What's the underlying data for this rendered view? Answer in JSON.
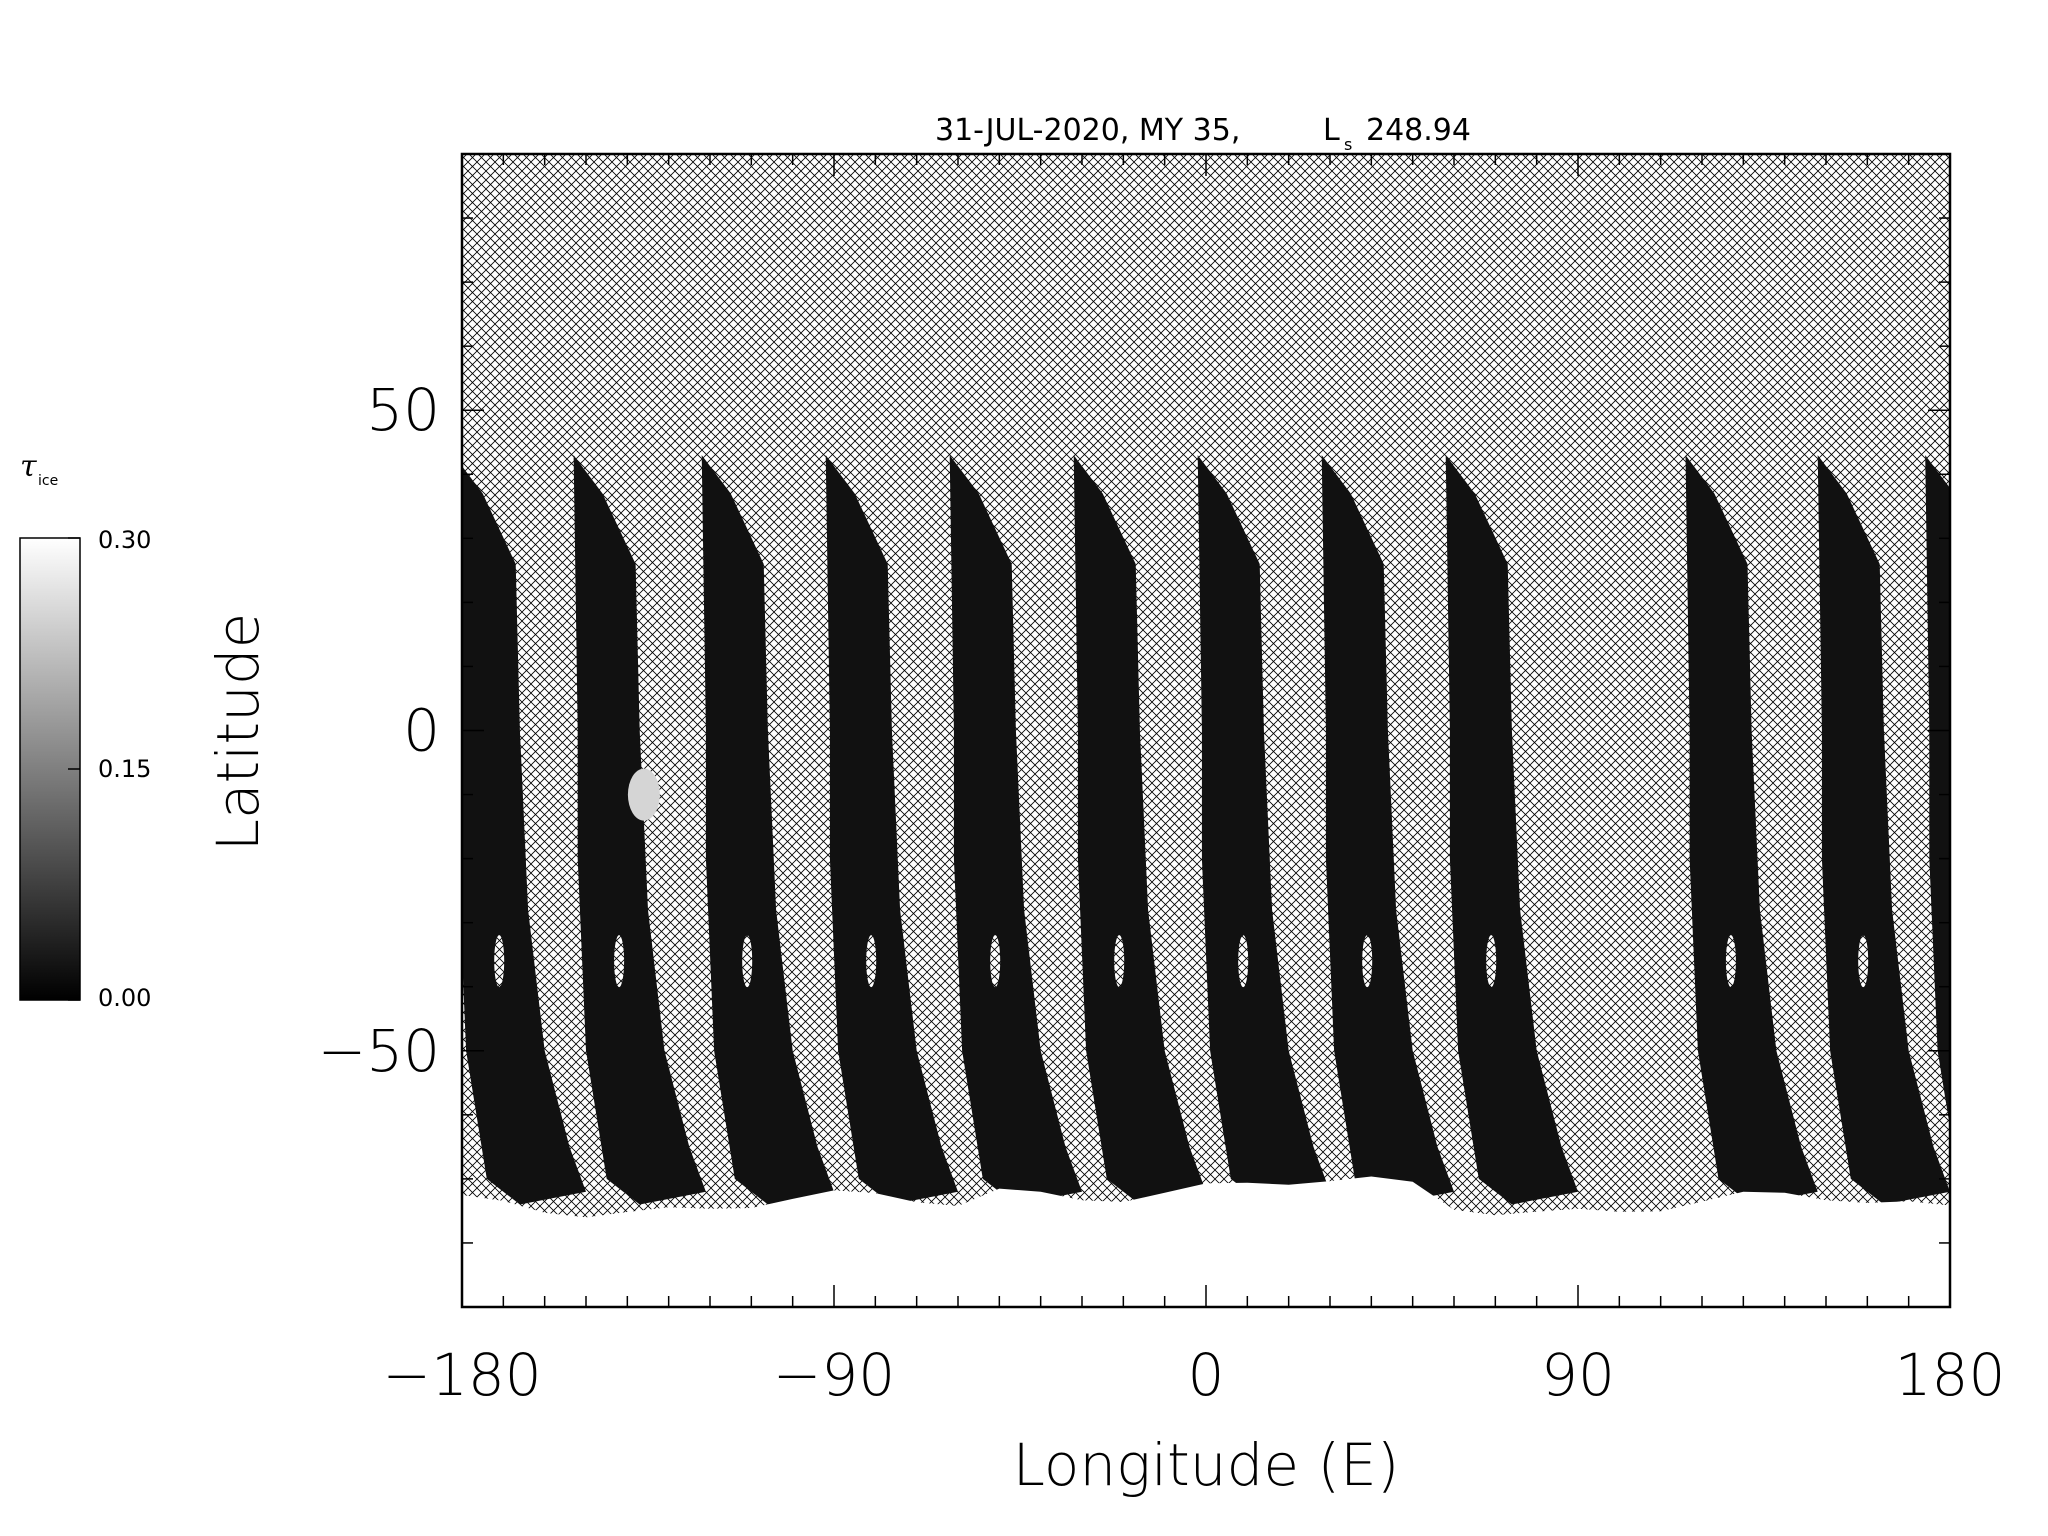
{
  "chart_data": {
    "type": "heatmap",
    "title_parts": {
      "date_my": "31-JUL-2020, MY 35,",
      "ls_symbol": "L",
      "ls_subscript": "s",
      "ls_value": "248.94"
    },
    "xlabel": "Longitude (E)",
    "ylabel": "Latitude",
    "xlim": [
      -180,
      180
    ],
    "ylim": [
      -90,
      90
    ],
    "x_ticks": [
      {
        "value": -180,
        "label": "−180"
      },
      {
        "value": -90,
        "label": "−90"
      },
      {
        "value": 0,
        "label": "0"
      },
      {
        "value": 90,
        "label": "90"
      },
      {
        "value": 180,
        "label": "180"
      }
    ],
    "y_ticks": [
      {
        "value": 50,
        "label": "50"
      },
      {
        "value": 0,
        "label": "0"
      },
      {
        "value": -50,
        "label": "−50"
      }
    ],
    "colorbar": {
      "label_symbol": "τ",
      "label_subscript": "ice",
      "range": [
        0.0,
        0.3
      ],
      "ticks": [
        {
          "value": 0.3,
          "label": "0.30"
        },
        {
          "value": 0.15,
          "label": "0.15"
        },
        {
          "value": 0.0,
          "label": "0.00"
        }
      ],
      "colormap": "grayscale (black = 0.00, white = 0.30)"
    },
    "no_data_pattern": "cross-hatch",
    "swaths": [
      {
        "center_lon": -180,
        "value": 0.02
      },
      {
        "center_lon": -151,
        "value": 0.02
      },
      {
        "center_lon": -120,
        "value": 0.02
      },
      {
        "center_lon": -90,
        "value": 0.02
      },
      {
        "center_lon": -60,
        "value": 0.02
      },
      {
        "center_lon": -30,
        "value": 0.02
      },
      {
        "center_lon": 0,
        "value": 0.02
      },
      {
        "center_lon": 30,
        "value": 0.02
      },
      {
        "center_lon": 60,
        "value": 0.02
      },
      {
        "center_lon": 118,
        "value": 0.02
      },
      {
        "center_lon": 150,
        "value": 0.02
      },
      {
        "center_lon": 176,
        "value": 0.02
      }
    ],
    "south_polar_cap": {
      "lat_boundary": -72,
      "value": 0.3
    },
    "cloud_features": [
      {
        "lon": -136,
        "lat": -10,
        "value": 0.25
      }
    ]
  }
}
